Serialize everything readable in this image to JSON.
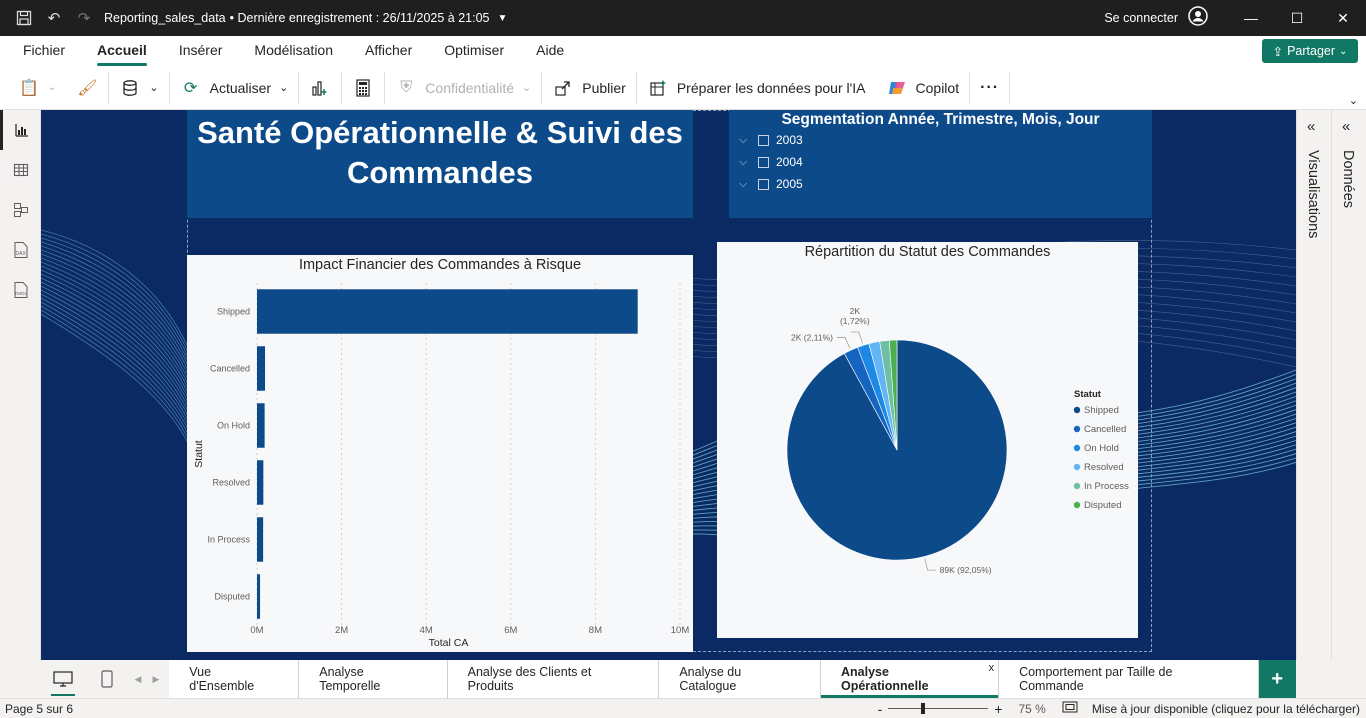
{
  "window": {
    "file_title": "Reporting_sales_data",
    "save_status": "• Dernière enregistrement : 26/11/2025 à 21:05",
    "signin": "Se connecter"
  },
  "menu": [
    "Fichier",
    "Accueil",
    "Insérer",
    "Modélisation",
    "Afficher",
    "Optimiser",
    "Aide"
  ],
  "share_label": "Partager",
  "toolbar": {
    "refresh": "Actualiser",
    "privacy": "Confidentialité",
    "publish": "Publier",
    "prepare_ai": "Préparer les données pour l'IA",
    "copilot": "Copilot",
    "more": "···"
  },
  "right_panes": {
    "visualisations": "Visualisations",
    "donnees": "Données"
  },
  "report": {
    "title": "Santé Opérationnelle & Suivi des Commandes",
    "slicer": {
      "title": "Segmentation Année, Trimestre, Mois, Jour",
      "items": [
        "2003",
        "2004",
        "2005"
      ]
    }
  },
  "chart_data": [
    {
      "type": "bar",
      "orientation": "horizontal",
      "title": "Impact Financier des Commandes à Risque",
      "xlabel": "Total CA",
      "ylabel": "Statut",
      "categories": [
        "Shipped",
        "Cancelled",
        "On Hold",
        "Resolved",
        "In Process",
        "Disputed"
      ],
      "values": [
        9000000,
        190000,
        180000,
        150000,
        145000,
        72000
      ],
      "xlim": [
        0,
        10000000
      ],
      "xticks": [
        0,
        2000000,
        4000000,
        6000000,
        8000000,
        10000000
      ],
      "xtick_labels": [
        "0M",
        "2M",
        "4M",
        "6M",
        "8M",
        "10M"
      ],
      "color": "#0d4a8a",
      "grid": true
    },
    {
      "type": "pie",
      "title": "Répartition du Statut des Commandes",
      "legend_title": "Statut",
      "legend_position": "right",
      "slices": [
        {
          "name": "Shipped",
          "value": 92.05,
          "color": "#0d4a8a",
          "label": "89K (92,05%)"
        },
        {
          "name": "Cancelled",
          "value": 2.11,
          "color": "#1565c0",
          "label": "2K (2,11%)"
        },
        {
          "name": "On Hold",
          "value": 1.72,
          "color": "#1e88e5",
          "label": "2K (1,72%)"
        },
        {
          "name": "Resolved",
          "value": 1.6,
          "color": "#64b5f6",
          "label": ""
        },
        {
          "name": "In Process",
          "value": 1.4,
          "color": "#6fbfa4",
          "label": ""
        },
        {
          "name": "Disputed",
          "value": 1.12,
          "color": "#4caf50",
          "label": ""
        }
      ]
    }
  ],
  "tabs": [
    "Vue d'Ensemble",
    "Analyse Temporelle",
    "Analyse des Clients et Produits",
    "Analyse du Catalogue",
    "Analyse Opérationnelle",
    "Comportement par Taille de Commande"
  ],
  "active_tab": "Analyse Opérationnelle",
  "status": {
    "page": "Page 5 sur 6",
    "zoom": "75 %",
    "zoom_value": 75,
    "update": "Mise à jour disponible (cliquez pour la télécharger)"
  }
}
